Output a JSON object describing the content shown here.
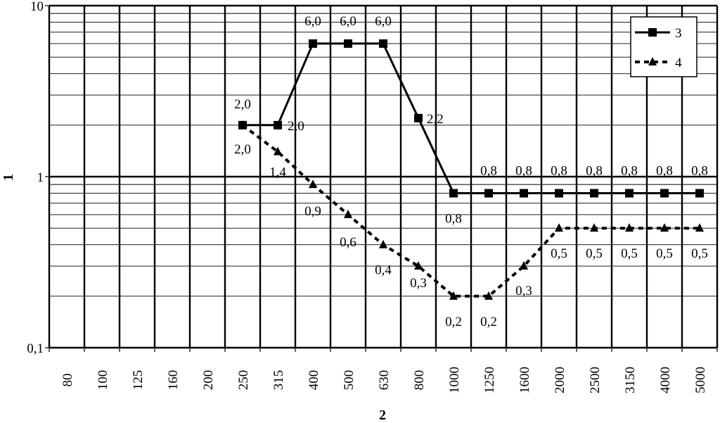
{
  "chart_data": {
    "type": "line",
    "title": "",
    "xlabel": "2",
    "ylabel": "1",
    "yscale": "log",
    "ylim": [
      0.1,
      10
    ],
    "y_ticks": [
      "0,1",
      "1",
      "10"
    ],
    "categories": [
      "80",
      "100",
      "125",
      "160",
      "200",
      "250",
      "315",
      "400",
      "500",
      "630",
      "800",
      "1000",
      "1250",
      "1600",
      "2000",
      "2500",
      "3150",
      "4000",
      "5000"
    ],
    "grid": true,
    "legend_position": "top-right",
    "series": [
      {
        "name": "3",
        "marker": "square",
        "line_style": "solid",
        "color": "#000000",
        "values": [
          null,
          null,
          null,
          null,
          null,
          2.0,
          2.0,
          6.0,
          6.0,
          6.0,
          2.2,
          0.8,
          0.8,
          0.8,
          0.8,
          0.8,
          0.8,
          0.8,
          0.8
        ],
        "point_labels": [
          "",
          "",
          "",
          "",
          "",
          "2,0",
          "2,0",
          "6,0",
          "6,0",
          "6,0",
          "2,2",
          "0,8",
          "0,8",
          "0,8",
          "0,8",
          "0,8",
          "0,8",
          "0,8",
          "0,8"
        ]
      },
      {
        "name": "4",
        "marker": "triangle",
        "line_style": "dashed",
        "color": "#000000",
        "values": [
          null,
          null,
          null,
          null,
          null,
          2.0,
          1.4,
          0.9,
          0.6,
          0.4,
          0.3,
          0.2,
          0.2,
          0.3,
          0.5,
          0.5,
          0.5,
          0.5,
          0.5
        ],
        "point_labels": [
          "",
          "",
          "",
          "",
          "",
          "2,0",
          "1,4",
          "0,9",
          "0,6",
          "0,4",
          "0,3",
          "0,2",
          "0,2",
          "0,3",
          "0,5",
          "0,5",
          "0,5",
          "0,5",
          "0,5"
        ]
      }
    ]
  }
}
